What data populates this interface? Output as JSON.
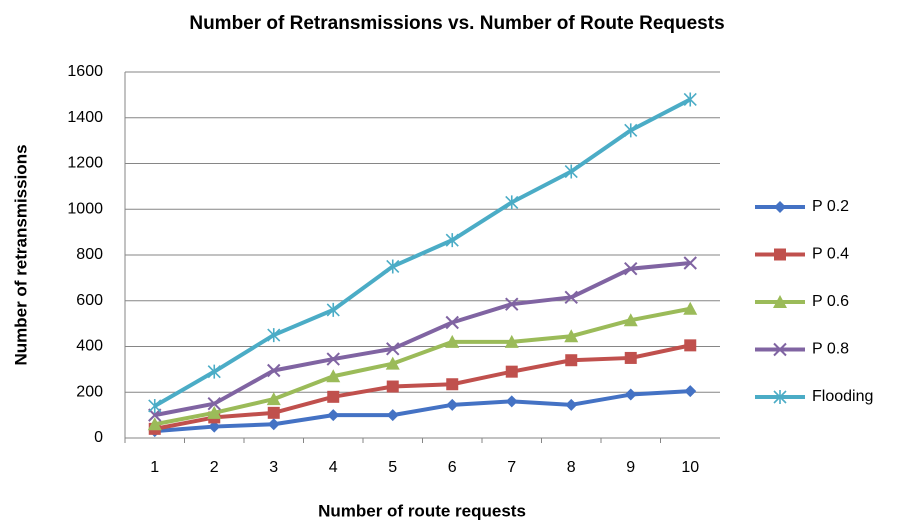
{
  "chart_data": {
    "type": "line",
    "title": "Number of Retransmissions vs. Number of Route Requests",
    "x_label": "Number of route requests",
    "y_label": "Number of retransmissions",
    "categories": [
      "1",
      "2",
      "3",
      "4",
      "5",
      "6",
      "7",
      "8",
      "9",
      "10"
    ],
    "series": [
      {
        "name": "P 0.2",
        "color": "#4472c4",
        "marker": "diamond",
        "values": [
          30,
          50,
          60,
          100,
          100,
          145,
          160,
          145,
          190,
          205
        ]
      },
      {
        "name": "P 0.4",
        "color": "#c0504d",
        "marker": "square",
        "values": [
          40,
          90,
          110,
          180,
          225,
          235,
          290,
          340,
          350,
          405
        ]
      },
      {
        "name": "P 0.6",
        "color": "#9bbb59",
        "marker": "triangle",
        "values": [
          60,
          110,
          170,
          270,
          325,
          420,
          420,
          445,
          515,
          565
        ]
      },
      {
        "name": "P 0.8",
        "color": "#8064a2",
        "marker": "x",
        "values": [
          100,
          150,
          295,
          345,
          390,
          505,
          585,
          615,
          740,
          765
        ]
      },
      {
        "name": "Flooding",
        "color": "#4bacc6",
        "marker": "star",
        "values": [
          140,
          290,
          450,
          560,
          750,
          865,
          1030,
          1165,
          1345,
          1480
        ]
      }
    ],
    "ylim": [
      0,
      1600
    ],
    "yticks": [
      0,
      200,
      400,
      600,
      800,
      1000,
      1200,
      1400,
      1600
    ],
    "grid": true,
    "legend": "right"
  }
}
